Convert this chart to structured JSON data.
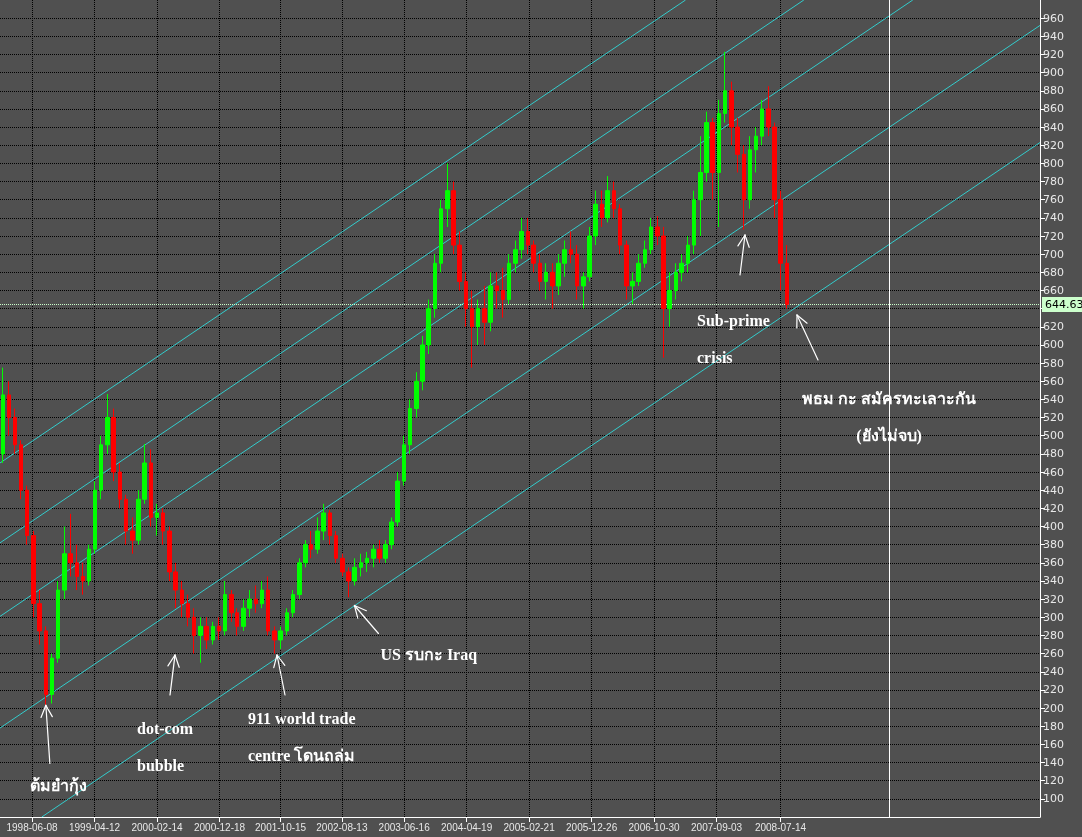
{
  "chart_data": {
    "type": "candlestick",
    "x": [
      "1998-01-15",
      "1998-02-15",
      "1998-03-15",
      "1998-04-15",
      "1998-05-15",
      "1998-06-15",
      "1998-07-15",
      "1998-08-15",
      "1998-09-15",
      "1998-10-15",
      "1998-11-15",
      "1998-12-15",
      "1999-01-15",
      "1999-02-15",
      "1999-03-15",
      "1999-04-15",
      "1999-05-15",
      "1999-06-15",
      "1999-07-15",
      "1999-08-15",
      "1999-09-15",
      "1999-10-15",
      "1999-11-15",
      "1999-12-15",
      "2000-01-15",
      "2000-02-15",
      "2000-03-15",
      "2000-04-15",
      "2000-05-15",
      "2000-06-15",
      "2000-07-15",
      "2000-08-15",
      "2000-09-15",
      "2000-10-15",
      "2000-11-15",
      "2000-12-15",
      "2001-01-15",
      "2001-02-15",
      "2001-03-15",
      "2001-04-15",
      "2001-05-15",
      "2001-06-15",
      "2001-07-15",
      "2001-08-15",
      "2001-09-15",
      "2001-10-15",
      "2001-11-15",
      "2001-12-15",
      "2002-01-15",
      "2002-02-15",
      "2002-03-15",
      "2002-04-15",
      "2002-05-15",
      "2002-06-15",
      "2002-07-15",
      "2002-08-15",
      "2002-09-15",
      "2002-10-15",
      "2002-11-15",
      "2002-12-15",
      "2003-01-15",
      "2003-02-15",
      "2003-03-15",
      "2003-04-15",
      "2003-05-15",
      "2003-06-15",
      "2003-07-15",
      "2003-08-15",
      "2003-09-15",
      "2003-10-15",
      "2003-11-15",
      "2003-12-15",
      "2004-01-15",
      "2004-02-15",
      "2004-03-15",
      "2004-04-15",
      "2004-05-15",
      "2004-06-15",
      "2004-07-15",
      "2004-08-15",
      "2004-09-15",
      "2004-10-15",
      "2004-11-15",
      "2004-12-15",
      "2005-01-15",
      "2005-02-15",
      "2005-03-15",
      "2005-04-15",
      "2005-05-15",
      "2005-06-15",
      "2005-07-15",
      "2005-08-15",
      "2005-09-15",
      "2005-10-15",
      "2005-11-15",
      "2005-12-15",
      "2006-01-15",
      "2006-02-15",
      "2006-03-15",
      "2006-04-15",
      "2006-05-15",
      "2006-06-15",
      "2006-07-15",
      "2006-08-15",
      "2006-09-15",
      "2006-10-15",
      "2006-11-15",
      "2006-12-15",
      "2007-01-15",
      "2007-02-15",
      "2007-03-15",
      "2007-04-15",
      "2007-05-15",
      "2007-06-15",
      "2007-07-15",
      "2007-08-15",
      "2007-09-15",
      "2007-10-15",
      "2007-11-15",
      "2007-12-15",
      "2008-01-15",
      "2008-02-15",
      "2008-03-15",
      "2008-04-15",
      "2008-05-15",
      "2008-06-15",
      "2008-07-15",
      "2008-08-15"
    ],
    "ohlc": [
      [
        480,
        575,
        470,
        545
      ],
      [
        545,
        560,
        500,
        520
      ],
      [
        520,
        530,
        480,
        490
      ],
      [
        490,
        495,
        430,
        440
      ],
      [
        440,
        445,
        380,
        390
      ],
      [
        390,
        395,
        300,
        315
      ],
      [
        315,
        330,
        270,
        285
      ],
      [
        285,
        290,
        203,
        215
      ],
      [
        215,
        260,
        205,
        255
      ],
      [
        255,
        340,
        250,
        330
      ],
      [
        330,
        400,
        320,
        370
      ],
      [
        370,
        414,
        345,
        360
      ],
      [
        360,
        380,
        330,
        345
      ],
      [
        345,
        360,
        325,
        340
      ],
      [
        340,
        380,
        335,
        375
      ],
      [
        375,
        450,
        370,
        440
      ],
      [
        440,
        500,
        430,
        490
      ],
      [
        490,
        546,
        480,
        520
      ],
      [
        520,
        530,
        450,
        460
      ],
      [
        460,
        470,
        420,
        430
      ],
      [
        430,
        435,
        380,
        395
      ],
      [
        395,
        410,
        370,
        385
      ],
      [
        385,
        440,
        380,
        430
      ],
      [
        430,
        491,
        425,
        470
      ],
      [
        470,
        485,
        400,
        410
      ],
      [
        410,
        425,
        390,
        415
      ],
      [
        415,
        420,
        380,
        395
      ],
      [
        395,
        400,
        340,
        350
      ],
      [
        350,
        360,
        310,
        330
      ],
      [
        330,
        340,
        300,
        315
      ],
      [
        315,
        325,
        290,
        300
      ],
      [
        300,
        310,
        260,
        280
      ],
      [
        280,
        300,
        250,
        290
      ],
      [
        290,
        300,
        265,
        275
      ],
      [
        275,
        295,
        270,
        290
      ],
      [
        290,
        300,
        275,
        285
      ],
      [
        285,
        340,
        280,
        325
      ],
      [
        325,
        330,
        295,
        305
      ],
      [
        305,
        310,
        280,
        290
      ],
      [
        290,
        320,
        285,
        310
      ],
      [
        310,
        330,
        300,
        320
      ],
      [
        320,
        335,
        305,
        315
      ],
      [
        315,
        340,
        310,
        330
      ],
      [
        330,
        345,
        280,
        285
      ],
      [
        285,
        290,
        260,
        275
      ],
      [
        275,
        290,
        265,
        285
      ],
      [
        285,
        310,
        280,
        305
      ],
      [
        305,
        330,
        300,
        325
      ],
      [
        325,
        365,
        320,
        360
      ],
      [
        360,
        385,
        355,
        380
      ],
      [
        380,
        395,
        365,
        375
      ],
      [
        375,
        410,
        370,
        395
      ],
      [
        395,
        425,
        385,
        415
      ],
      [
        415,
        418,
        380,
        390
      ],
      [
        390,
        395,
        360,
        365
      ],
      [
        365,
        370,
        345,
        350
      ],
      [
        350,
        355,
        322,
        340
      ],
      [
        340,
        365,
        335,
        355
      ],
      [
        355,
        370,
        345,
        360
      ],
      [
        360,
        372,
        350,
        365
      ],
      [
        365,
        380,
        355,
        375
      ],
      [
        375,
        385,
        360,
        365
      ],
      [
        365,
        385,
        360,
        380
      ],
      [
        380,
        410,
        375,
        405
      ],
      [
        405,
        460,
        400,
        450
      ],
      [
        450,
        500,
        445,
        490
      ],
      [
        490,
        540,
        480,
        530
      ],
      [
        530,
        570,
        520,
        560
      ],
      [
        560,
        610,
        550,
        600
      ],
      [
        600,
        650,
        590,
        640
      ],
      [
        640,
        700,
        630,
        690
      ],
      [
        690,
        760,
        680,
        750
      ],
      [
        750,
        800,
        730,
        770
      ],
      [
        770,
        780,
        700,
        710
      ],
      [
        710,
        725,
        660,
        670
      ],
      [
        670,
        680,
        620,
        640
      ],
      [
        640,
        660,
        575,
        620
      ],
      [
        620,
        650,
        600,
        640
      ],
      [
        640,
        665,
        600,
        625
      ],
      [
        625,
        680,
        615,
        665
      ],
      [
        665,
        680,
        640,
        660
      ],
      [
        660,
        685,
        630,
        650
      ],
      [
        650,
        700,
        645,
        690
      ],
      [
        690,
        715,
        680,
        705
      ],
      [
        705,
        740,
        695,
        725
      ],
      [
        725,
        740,
        700,
        710
      ],
      [
        710,
        715,
        680,
        690
      ],
      [
        690,
        700,
        660,
        670
      ],
      [
        670,
        690,
        650,
        680
      ],
      [
        680,
        690,
        640,
        665
      ],
      [
        665,
        700,
        655,
        690
      ],
      [
        690,
        715,
        675,
        705
      ],
      [
        705,
        725,
        690,
        700
      ],
      [
        700,
        710,
        650,
        665
      ],
      [
        665,
        680,
        640,
        675
      ],
      [
        675,
        730,
        670,
        720
      ],
      [
        720,
        770,
        710,
        755
      ],
      [
        755,
        770,
        730,
        740
      ],
      [
        740,
        786,
        735,
        770
      ],
      [
        770,
        780,
        740,
        750
      ],
      [
        750,
        755,
        700,
        710
      ],
      [
        710,
        715,
        650,
        665
      ],
      [
        665,
        680,
        645,
        670
      ],
      [
        670,
        700,
        665,
        690
      ],
      [
        690,
        715,
        685,
        705
      ],
      [
        705,
        740,
        700,
        730
      ],
      [
        730,
        742,
        710,
        720
      ],
      [
        720,
        730,
        586,
        640
      ],
      [
        640,
        680,
        620,
        660
      ],
      [
        660,
        690,
        650,
        680
      ],
      [
        680,
        700,
        670,
        690
      ],
      [
        690,
        720,
        680,
        710
      ],
      [
        710,
        770,
        700,
        760
      ],
      [
        760,
        830,
        720,
        790
      ],
      [
        790,
        857,
        780,
        845
      ],
      [
        845,
        850,
        760,
        790
      ],
      [
        790,
        870,
        730,
        855
      ],
      [
        855,
        923,
        845,
        880
      ],
      [
        880,
        890,
        820,
        840
      ],
      [
        840,
        850,
        790,
        810
      ],
      [
        810,
        820,
        727,
        760
      ],
      [
        760,
        830,
        750,
        815
      ],
      [
        815,
        840,
        790,
        830
      ],
      [
        830,
        870,
        820,
        860
      ],
      [
        860,
        885,
        830,
        840
      ],
      [
        840,
        845,
        740,
        760
      ],
      [
        760,
        770,
        660,
        690
      ],
      [
        690,
        710,
        640,
        644.63
      ]
    ],
    "series": [
      {
        "type": "line",
        "color": "#33cccc",
        "x": [
          "1998-01-01",
          "2007-04-03"
        ],
        "values": [
          470,
          980
        ]
      },
      {
        "type": "line",
        "color": "#33cccc",
        "x": [
          "1998-01-01",
          "2008-11-06"
        ],
        "values": [
          382,
          980
        ]
      },
      {
        "type": "line",
        "color": "#33cccc",
        "x": [
          "1998-01-01",
          "2010-04-27"
        ],
        "values": [
          301,
          980
        ]
      },
      {
        "type": "line",
        "color": "#33cccc",
        "x": [
          "1998-01-01",
          "2012-01-14"
        ],
        "values": [
          178,
          952
        ]
      },
      {
        "type": "line",
        "color": "#33cccc",
        "x": [
          "1998-07-26",
          "2012-01-14"
        ],
        "values": [
          80,
          823
        ]
      }
    ],
    "line_style": "solid",
    "xlim": [
      "1998-01-01",
      "2012-01-14"
    ],
    "xticks": [
      "1998-06-08",
      "1999-04-12",
      "2000-02-14",
      "2000-12-18",
      "2001-10-15",
      "2002-08-13",
      "2003-06-16",
      "2004-04-19",
      "2005-02-21",
      "2005-12-26",
      "2006-10-30",
      "2007-09-03",
      "2008-07-14"
    ],
    "ylim": [
      80,
      980
    ],
    "yticks": [
      100,
      120,
      140,
      160,
      180,
      200,
      220,
      240,
      260,
      280,
      300,
      320,
      340,
      360,
      380,
      400,
      420,
      440,
      460,
      480,
      500,
      520,
      540,
      560,
      580,
      600,
      620,
      {
        "value": 640,
        "label": null
      },
      660,
      680,
      700,
      720,
      740,
      760,
      780,
      800,
      820,
      840,
      860,
      880,
      900,
      920,
      940,
      960
    ],
    "grid": true,
    "ref_lines": [
      {
        "axis": "x",
        "value": "2010-01-01",
        "color": "#ffffff"
      },
      {
        "axis": "y",
        "value": 644.63,
        "label": "644.63",
        "color": "#ccffcc",
        "line_style": "dotted"
      }
    ],
    "annotations": [
      {
        "text": "ต้มยำกุ้ง",
        "x": "1998-08-15",
        "y": 203
      },
      "dot-com bubble",
      "911 world trade centre โดนถล่ม",
      {
        "text": "US รบกะ Iraq",
        "x": "2002-10-14",
        "y": 313
      },
      "Sub-prime crisis",
      "พธม กะ สมัครทะเลาะกัน (ยังไม่จบ)"
    ]
  }
}
